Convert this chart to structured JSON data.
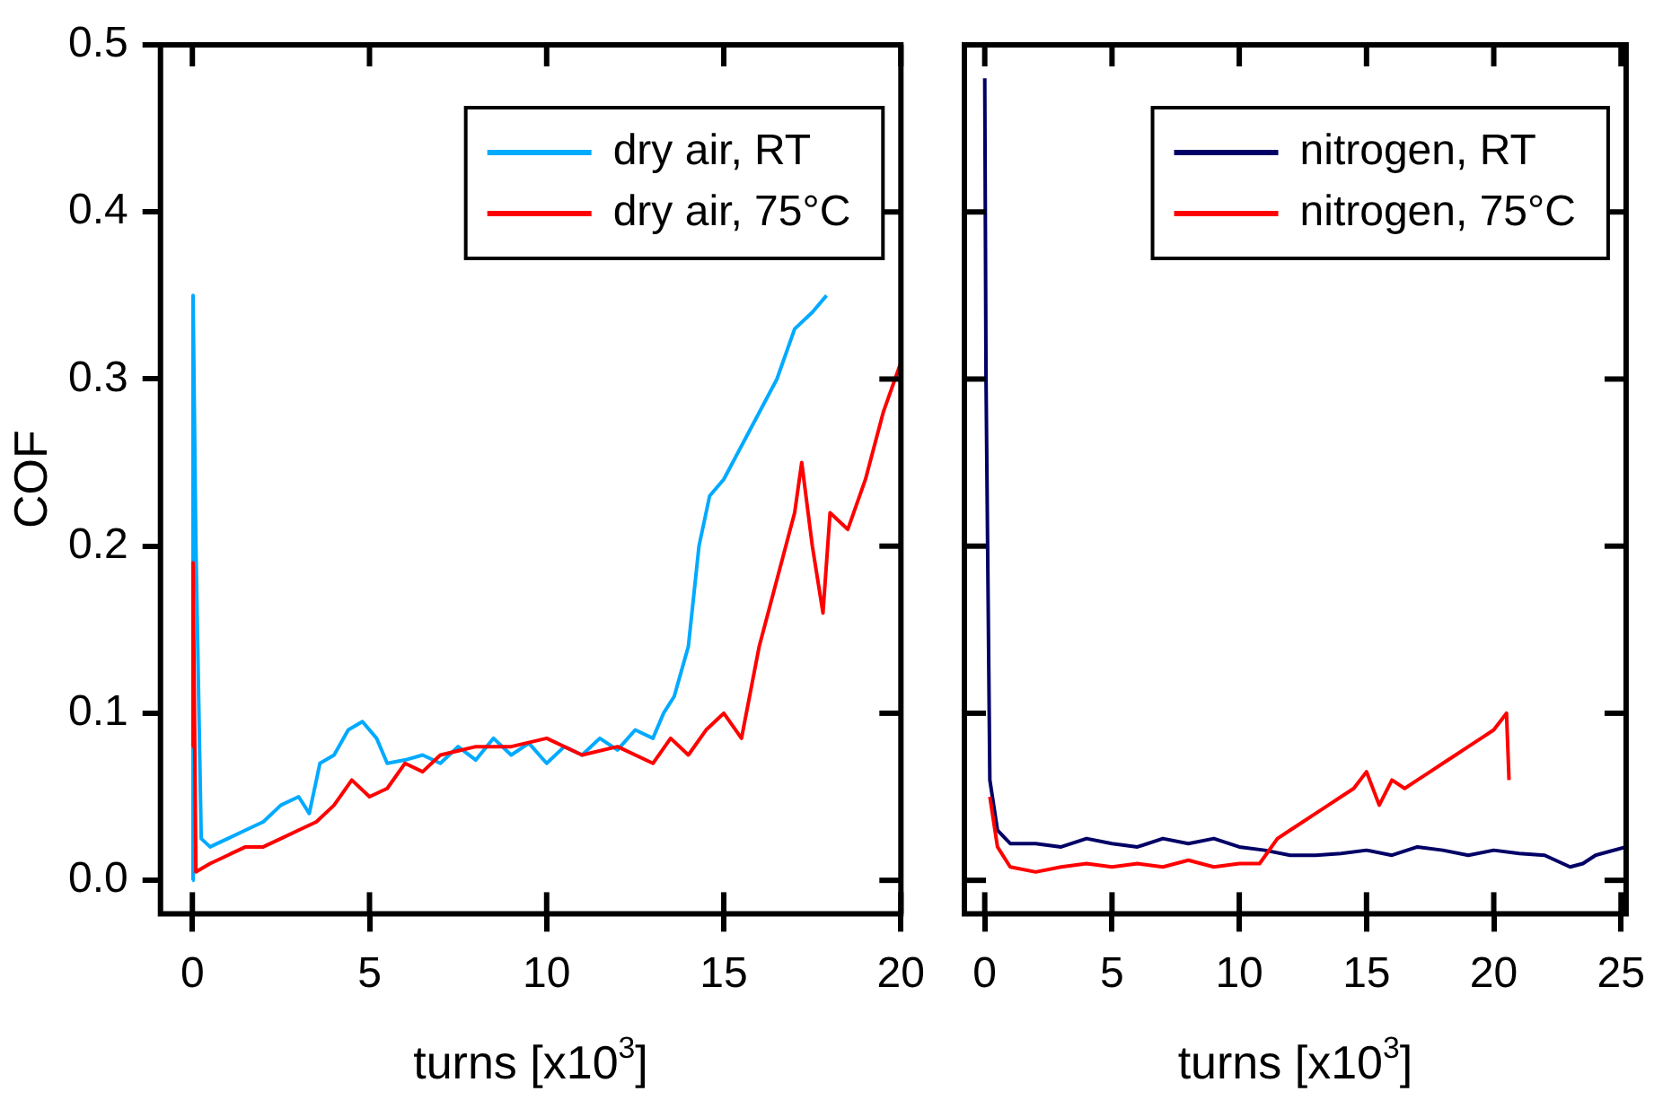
{
  "chart_data": [
    {
      "type": "line",
      "ylabel": "COF",
      "xlabel": "turns [x10$^{3}$]",
      "legend": "top right",
      "grid": false,
      "xlim": [
        -0.9,
        20
      ],
      "xticks": [
        0,
        5,
        10,
        15,
        20
      ],
      "ylim": [
        -0.02,
        0.5
      ],
      "yticks": [
        {
          "value": 0,
          "label": "0.0"
        },
        0.1,
        0.2,
        0.3,
        0.4,
        0.5
      ],
      "series": [
        {
          "name": "dry air, RT",
          "color": "#00aaff",
          "x": [
            0,
            0.02,
            0.1,
            0.25,
            0.5,
            1,
            1.5,
            2,
            2.5,
            3,
            3.3,
            3.6,
            4,
            4.4,
            4.8,
            5.2,
            5.5,
            6,
            6.5,
            7,
            7.5,
            8,
            8.5,
            9,
            9.5,
            10,
            10.5,
            11,
            11.5,
            12,
            12.5,
            13,
            13.3,
            13.6,
            14,
            14.3,
            14.6,
            15,
            15.5,
            16,
            16.5,
            17,
            17.5,
            17.9
          ],
          "values": [
            0,
            0.35,
            0.2,
            0.025,
            0.02,
            0.025,
            0.03,
            0.035,
            0.045,
            0.05,
            0.04,
            0.07,
            0.075,
            0.09,
            0.095,
            0.085,
            0.07,
            0.072,
            0.075,
            0.07,
            0.08,
            0.072,
            0.085,
            0.075,
            0.082,
            0.07,
            0.08,
            0.075,
            0.085,
            0.078,
            0.09,
            0.085,
            0.1,
            0.11,
            0.14,
            0.2,
            0.23,
            0.24,
            0.26,
            0.28,
            0.3,
            0.33,
            0.34,
            0.35
          ]
        },
        {
          "name": "dry air, 75°C",
          "color": "#ff0000",
          "x": [
            0,
            0.02,
            0.1,
            0.5,
            1,
            1.5,
            2,
            2.5,
            3,
            3.5,
            4,
            4.5,
            5,
            5.5,
            6,
            6.5,
            7,
            8,
            9,
            10,
            11,
            12,
            13,
            13.5,
            14,
            14.5,
            15,
            15.5,
            16,
            16.5,
            17,
            17.2,
            17.5,
            17.8,
            18,
            18.5,
            19,
            19.5,
            20
          ],
          "values": [
            0.08,
            0.19,
            0.005,
            0.01,
            0.015,
            0.02,
            0.02,
            0.025,
            0.03,
            0.035,
            0.045,
            0.06,
            0.05,
            0.055,
            0.07,
            0.065,
            0.075,
            0.08,
            0.08,
            0.085,
            0.075,
            0.08,
            0.07,
            0.085,
            0.075,
            0.09,
            0.1,
            0.085,
            0.14,
            0.18,
            0.22,
            0.25,
            0.2,
            0.16,
            0.22,
            0.21,
            0.24,
            0.28,
            0.31
          ]
        }
      ]
    },
    {
      "type": "line",
      "xlabel": "turns [x10$^{3}$]",
      "legend": "top right",
      "grid": false,
      "tick_labels": "x",
      "xlim": [
        -0.8,
        25.2
      ],
      "xticks": [
        0,
        5,
        10,
        15,
        20,
        25
      ],
      "ylim": [
        -0.02,
        0.5
      ],
      "yticks": [
        0,
        0.1,
        0.2,
        0.3,
        0.4,
        0.5
      ],
      "series": [
        {
          "name": "nitrogen, RT",
          "color": "#000066",
          "x": [
            0,
            0.05,
            0.2,
            0.5,
            1,
            2,
            3,
            4,
            5,
            6,
            7,
            8,
            9,
            10,
            11,
            12,
            13,
            14,
            15,
            16,
            17,
            18,
            19,
            20,
            21,
            22,
            23,
            23.5,
            24,
            25.2
          ],
          "values": [
            0.48,
            0.3,
            0.06,
            0.03,
            0.022,
            0.022,
            0.02,
            0.025,
            0.022,
            0.02,
            0.025,
            0.022,
            0.025,
            0.02,
            0.018,
            0.015,
            0.015,
            0.016,
            0.018,
            0.015,
            0.02,
            0.018,
            0.015,
            0.018,
            0.016,
            0.015,
            0.008,
            0.01,
            0.015,
            0.02
          ]
        },
        {
          "name": "nitrogen, 75°C",
          "color": "#ff0000",
          "x": [
            0.2,
            0.5,
            1,
            2,
            3,
            4,
            5,
            6,
            7,
            8,
            9,
            10,
            10.8,
            11.5,
            12,
            12.5,
            13,
            13.5,
            14,
            14.5,
            15,
            15.5,
            16,
            16.5,
            17,
            17.5,
            18,
            18.5,
            19,
            19.5,
            20,
            20.5,
            20.6
          ],
          "values": [
            0.05,
            0.02,
            0.008,
            0.005,
            0.008,
            0.01,
            0.008,
            0.01,
            0.008,
            0.012,
            0.008,
            0.01,
            0.01,
            0.025,
            0.03,
            0.035,
            0.04,
            0.045,
            0.05,
            0.055,
            0.065,
            0.045,
            0.06,
            0.055,
            0.06,
            0.065,
            0.07,
            0.075,
            0.08,
            0.085,
            0.09,
            0.1,
            0.06
          ]
        }
      ]
    }
  ]
}
